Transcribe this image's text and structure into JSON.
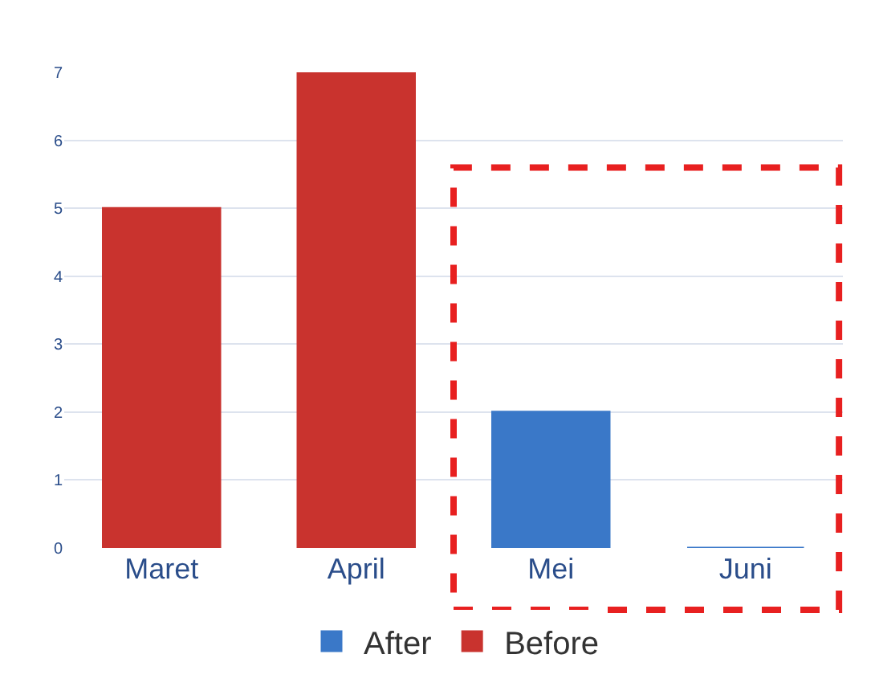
{
  "chart_data": {
    "type": "bar",
    "categories": [
      "Maret",
      "April",
      "Mei",
      "Juni"
    ],
    "series": [
      {
        "name": "After",
        "color": "#3a78c8",
        "values": [
          null,
          null,
          2,
          0
        ]
      },
      {
        "name": "Before",
        "color": "#c9332e",
        "values": [
          5,
          7,
          null,
          null
        ]
      }
    ],
    "ylim": [
      0,
      7
    ],
    "yticks": [
      0,
      1,
      2,
      3,
      4,
      5,
      6,
      7
    ],
    "grid": "y",
    "legend": "bottom"
  }
}
